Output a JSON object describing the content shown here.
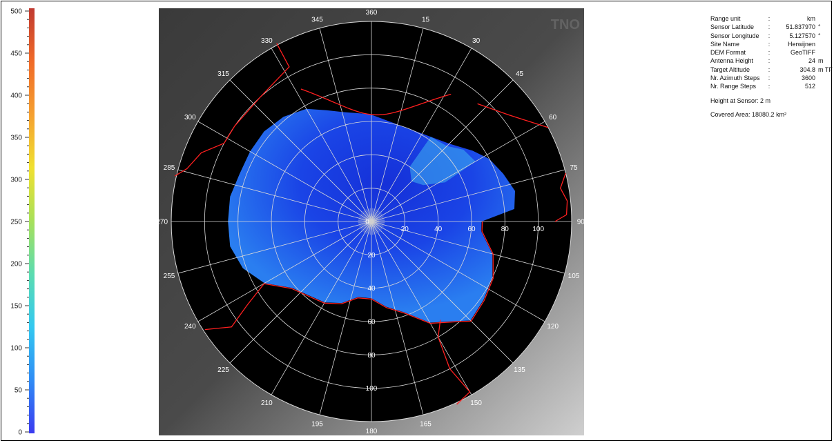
{
  "colors": {
    "colormap": [
      "#3a3af0",
      "#2f8cf5",
      "#33c8f0",
      "#5cdcb0",
      "#a8e05a",
      "#f0e030",
      "#f5a030",
      "#f06a28",
      "#c03a30"
    ],
    "horizon_line": "#ff1f1f",
    "radar_bg": "#000000",
    "coverage_blue": "#1a3de0"
  },
  "chart_data": {
    "type": "heatmap",
    "colorbar": {
      "min": 0,
      "max": 500,
      "ticks": [
        0,
        50,
        100,
        150,
        200,
        250,
        300,
        350,
        400,
        450,
        500
      ]
    },
    "polar": {
      "azimuth_labels": [
        "360",
        "15",
        "30",
        "45",
        "60",
        "75",
        "90",
        "105",
        "120",
        "135",
        "150",
        "165",
        "180",
        "195",
        "210",
        "225",
        "240",
        "255",
        "270",
        "285",
        "300",
        "315",
        "330",
        "345"
      ],
      "range_labels": [
        "0",
        "20",
        "40",
        "60",
        "80",
        "100"
      ],
      "range_rings": [
        20,
        40,
        60,
        80,
        100
      ],
      "max_range": 120,
      "radials_every_deg": 15
    },
    "watermark": "TNO"
  },
  "info": {
    "rows": [
      {
        "label": "Range unit",
        "value": "km",
        "unit": ""
      },
      {
        "label": "Sensor Latitude",
        "value": "51.837970",
        "unit": "°"
      },
      {
        "label": "Sensor Longitude",
        "value": "5.127570",
        "unit": "°"
      },
      {
        "label": "Site Name",
        "value": "Herwijnen",
        "unit": ""
      },
      {
        "label": "DEM Format",
        "value": "GeoTIFF",
        "unit": ""
      },
      {
        "label": "Antenna Height",
        "value": "24",
        "unit": "m"
      },
      {
        "label": "Target Altitude",
        "value": "304.8",
        "unit": "m TF"
      },
      {
        "label": "Nr. Azimuth Steps",
        "value": "3600",
        "unit": ""
      },
      {
        "label": "Nr. Range Steps",
        "value": "512",
        "unit": ""
      }
    ],
    "height_at_sensor": "Height at Sensor: 2 m",
    "covered_area": "Covered Area: 18080.2 km²"
  }
}
